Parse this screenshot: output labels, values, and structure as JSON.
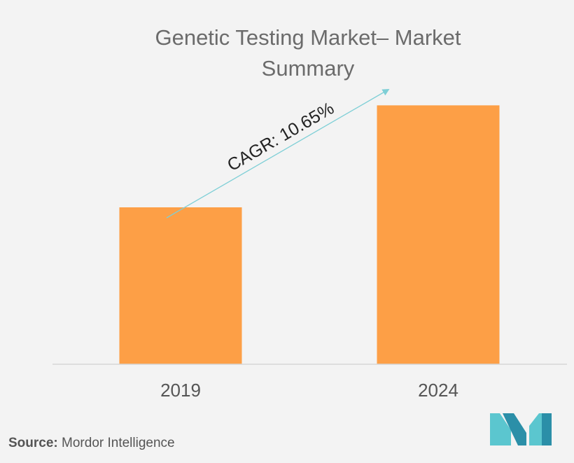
{
  "chart_title": {
    "line1": "Genetic Testing Market– Market",
    "line2": "Summary"
  },
  "chart_data": {
    "type": "bar",
    "categories": [
      "2019",
      "2024"
    ],
    "values": [
      100,
      165
    ],
    "annotation": "CAGR: 10.65%",
    "title": "Genetic Testing Market– Market Summary",
    "xlabel": "",
    "ylabel": "",
    "ylim": [
      0,
      200
    ],
    "grid": false,
    "legend": "none"
  },
  "colors": {
    "bar": "#fd9f46",
    "arrow": "#7ecfd6",
    "baseline": "#d6d6d6",
    "logo_light": "#5bc6cf",
    "logo_dark": "#2b8fa8"
  },
  "source": {
    "label": "Source:",
    "text": "Mordor Intelligence"
  },
  "logo": {
    "icon": "mordor-intelligence-logo-icon"
  }
}
